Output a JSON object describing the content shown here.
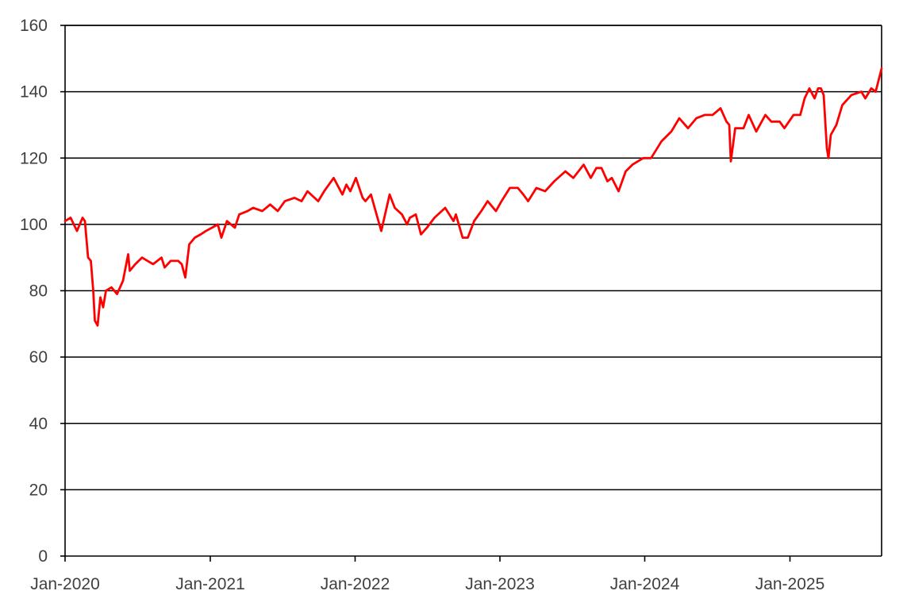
{
  "chart_data": {
    "type": "line",
    "title": "",
    "xlabel": "",
    "ylabel": "",
    "ylim": [
      0,
      160
    ],
    "xlim": [
      "2020-01-01",
      "2025-08-20"
    ],
    "yticks": [
      0,
      20,
      40,
      60,
      80,
      100,
      120,
      140,
      160
    ],
    "ytick_labels": [
      "0",
      "20",
      "40",
      "60",
      "80",
      "100",
      "120",
      "140",
      "160"
    ],
    "xticks": [
      "2020-01-01",
      "2021-01-01",
      "2022-01-01",
      "2023-01-01",
      "2024-01-01",
      "2025-01-01"
    ],
    "xtick_labels": [
      "Jan-2020",
      "Jan-2021",
      "Jan-2022",
      "Jan-2023",
      "Jan-2024",
      "Jan-2025"
    ],
    "grid": "horizontal",
    "legend": "none",
    "colors": {
      "series": "#ff0000",
      "grid": "#000000",
      "axis": "#000000",
      "text": "#404040"
    },
    "series": [
      {
        "points": [
          [
            "2020-01-01",
            101
          ],
          [
            "2020-01-15",
            102
          ],
          [
            "2020-01-31",
            98
          ],
          [
            "2020-02-14",
            102
          ],
          [
            "2020-02-20",
            101
          ],
          [
            "2020-02-28",
            90
          ],
          [
            "2020-03-06",
            89
          ],
          [
            "2020-03-12",
            80
          ],
          [
            "2020-03-16",
            71
          ],
          [
            "2020-03-23",
            69.5
          ],
          [
            "2020-03-30",
            78
          ],
          [
            "2020-04-06",
            75
          ],
          [
            "2020-04-13",
            80
          ],
          [
            "2020-04-27",
            81
          ],
          [
            "2020-05-11",
            79
          ],
          [
            "2020-05-26",
            83
          ],
          [
            "2020-06-08",
            91
          ],
          [
            "2020-06-12",
            86
          ],
          [
            "2020-06-26",
            88
          ],
          [
            "2020-07-13",
            90
          ],
          [
            "2020-07-27",
            89
          ],
          [
            "2020-08-10",
            88
          ],
          [
            "2020-08-31",
            90
          ],
          [
            "2020-09-08",
            87
          ],
          [
            "2020-09-23",
            89
          ],
          [
            "2020-10-12",
            89
          ],
          [
            "2020-10-21",
            88
          ],
          [
            "2020-10-30",
            84
          ],
          [
            "2020-11-09",
            94
          ],
          [
            "2020-11-23",
            96
          ],
          [
            "2020-12-08",
            97
          ],
          [
            "2020-12-21",
            98
          ],
          [
            "2021-01-05",
            99
          ],
          [
            "2021-01-20",
            100
          ],
          [
            "2021-01-29",
            96
          ],
          [
            "2021-02-12",
            101
          ],
          [
            "2021-03-04",
            99
          ],
          [
            "2021-03-15",
            103
          ],
          [
            "2021-04-05",
            104
          ],
          [
            "2021-04-19",
            105
          ],
          [
            "2021-05-12",
            104
          ],
          [
            "2021-06-01",
            106
          ],
          [
            "2021-06-20",
            104
          ],
          [
            "2021-07-08",
            107
          ],
          [
            "2021-08-01",
            108
          ],
          [
            "2021-08-19",
            107
          ],
          [
            "2021-09-03",
            110
          ],
          [
            "2021-09-30",
            107
          ],
          [
            "2021-10-15",
            110
          ],
          [
            "2021-11-08",
            114
          ],
          [
            "2021-11-30",
            109
          ],
          [
            "2021-12-10",
            112
          ],
          [
            "2021-12-20",
            110
          ],
          [
            "2022-01-03",
            114
          ],
          [
            "2022-01-20",
            108
          ],
          [
            "2022-01-27",
            107
          ],
          [
            "2022-02-10",
            109
          ],
          [
            "2022-02-24",
            103
          ],
          [
            "2022-03-08",
            98
          ],
          [
            "2022-03-29",
            109
          ],
          [
            "2022-04-11",
            105
          ],
          [
            "2022-04-29",
            103
          ],
          [
            "2022-05-12",
            100
          ],
          [
            "2022-05-19",
            102
          ],
          [
            "2022-06-03",
            103
          ],
          [
            "2022-06-16",
            97
          ],
          [
            "2022-07-01",
            99
          ],
          [
            "2022-07-20",
            102
          ],
          [
            "2022-08-16",
            105
          ],
          [
            "2022-09-06",
            101
          ],
          [
            "2022-09-12",
            103
          ],
          [
            "2022-09-29",
            96
          ],
          [
            "2022-10-12",
            96
          ],
          [
            "2022-10-28",
            101
          ],
          [
            "2022-11-15",
            104
          ],
          [
            "2022-12-01",
            107
          ],
          [
            "2022-12-22",
            104
          ],
          [
            "2023-01-05",
            107
          ],
          [
            "2023-01-26",
            111
          ],
          [
            "2023-02-15",
            111
          ],
          [
            "2023-03-01",
            109
          ],
          [
            "2023-03-13",
            107
          ],
          [
            "2023-04-03",
            111
          ],
          [
            "2023-04-25",
            110
          ],
          [
            "2023-05-18",
            113
          ],
          [
            "2023-06-15",
            116
          ],
          [
            "2023-07-05",
            114
          ],
          [
            "2023-07-31",
            118
          ],
          [
            "2023-08-18",
            114
          ],
          [
            "2023-09-01",
            117
          ],
          [
            "2023-09-14",
            117
          ],
          [
            "2023-09-29",
            113
          ],
          [
            "2023-10-10",
            114
          ],
          [
            "2023-10-27",
            110
          ],
          [
            "2023-11-14",
            116
          ],
          [
            "2023-12-01",
            118
          ],
          [
            "2023-12-28",
            120
          ],
          [
            "2024-01-17",
            120
          ],
          [
            "2024-02-12",
            125
          ],
          [
            "2024-03-08",
            128
          ],
          [
            "2024-03-28",
            132
          ],
          [
            "2024-04-19",
            129
          ],
          [
            "2024-05-10",
            132
          ],
          [
            "2024-05-31",
            133
          ],
          [
            "2024-06-20",
            133
          ],
          [
            "2024-07-10",
            135
          ],
          [
            "2024-07-25",
            131
          ],
          [
            "2024-08-01",
            130
          ],
          [
            "2024-08-05",
            119
          ],
          [
            "2024-08-16",
            129
          ],
          [
            "2024-09-06",
            129
          ],
          [
            "2024-09-19",
            133
          ],
          [
            "2024-10-08",
            128
          ],
          [
            "2024-10-31",
            133
          ],
          [
            "2024-11-15",
            131
          ],
          [
            "2024-12-06",
            131
          ],
          [
            "2024-12-18",
            129
          ],
          [
            "2025-01-10",
            133
          ],
          [
            "2025-01-27",
            133
          ],
          [
            "2025-02-07",
            138
          ],
          [
            "2025-02-19",
            141
          ],
          [
            "2025-03-04",
            138
          ],
          [
            "2025-03-13",
            141
          ],
          [
            "2025-03-20",
            141
          ],
          [
            "2025-03-27",
            139
          ],
          [
            "2025-04-04",
            123
          ],
          [
            "2025-04-08",
            120
          ],
          [
            "2025-04-14",
            127
          ],
          [
            "2025-04-28",
            130
          ],
          [
            "2025-05-13",
            136
          ],
          [
            "2025-06-05",
            139
          ],
          [
            "2025-06-30",
            140
          ],
          [
            "2025-07-10",
            138
          ],
          [
            "2025-07-25",
            141
          ],
          [
            "2025-08-05",
            140
          ],
          [
            "2025-08-20",
            147
          ]
        ]
      }
    ]
  }
}
